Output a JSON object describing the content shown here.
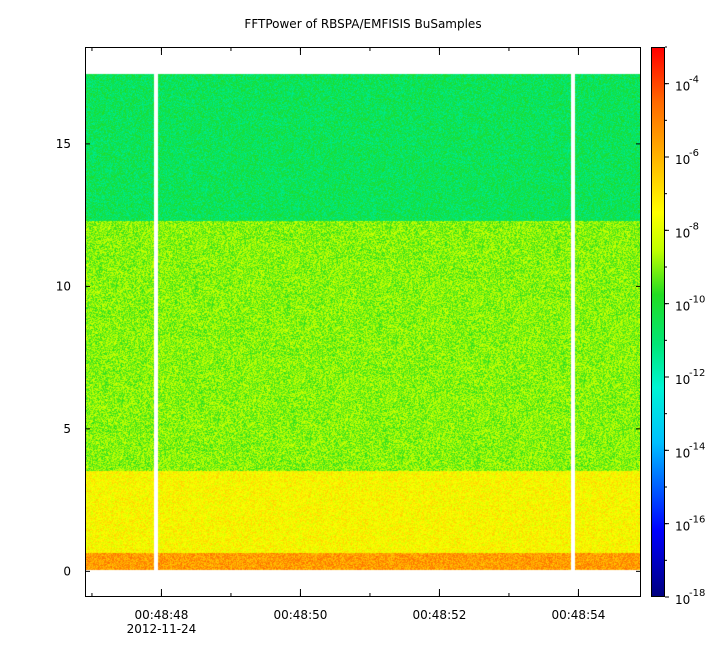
{
  "chart_data": {
    "type": "heatmap",
    "title": "FFTPower of RBSPA/EMFISIS  BuSamples",
    "xlabel": "",
    "ylabel": "",
    "x_ticks": [
      "00:48:48",
      "00:48:50",
      "00:48:52",
      "00:48:54"
    ],
    "x_date_label": "2012-11-24",
    "x_range": [
      "00:48:46.9",
      "00:48:54.9"
    ],
    "y_ticks": [
      0,
      5,
      10,
      15
    ],
    "ylim": [
      -0.9,
      18.4
    ],
    "data_extent_y": [
      0,
      17.5
    ],
    "data_gaps_x": [
      "00:48:47.9",
      "00:48:53.9"
    ],
    "power_bands": [
      {
        "y_range": [
          0,
          0.6
        ],
        "log10_power": -5.5
      },
      {
        "y_range": [
          0.6,
          3.5
        ],
        "log10_power": -7.5
      },
      {
        "y_range": [
          3.5,
          12.3
        ],
        "log10_power": -9.5
      },
      {
        "y_range": [
          12.3,
          17.5
        ],
        "log10_power": -11.5
      }
    ],
    "colorbar": {
      "scale": "log",
      "range": [
        1e-18,
        0.001
      ],
      "tick_labels": [
        "10",
        "10",
        "10",
        "10",
        "10",
        "10",
        "10",
        "10"
      ],
      "tick_exponents": [
        "-18",
        "-16",
        "-14",
        "-12",
        "-10",
        "-8",
        "-6",
        "-4"
      ],
      "colors": [
        "#000080",
        "#0000ff",
        "#00bfff",
        "#00f5d4",
        "#00e676",
        "#22dd22",
        "#bfff00",
        "#ffff00",
        "#ffb400",
        "#ff6a00",
        "#ff0000"
      ]
    }
  }
}
